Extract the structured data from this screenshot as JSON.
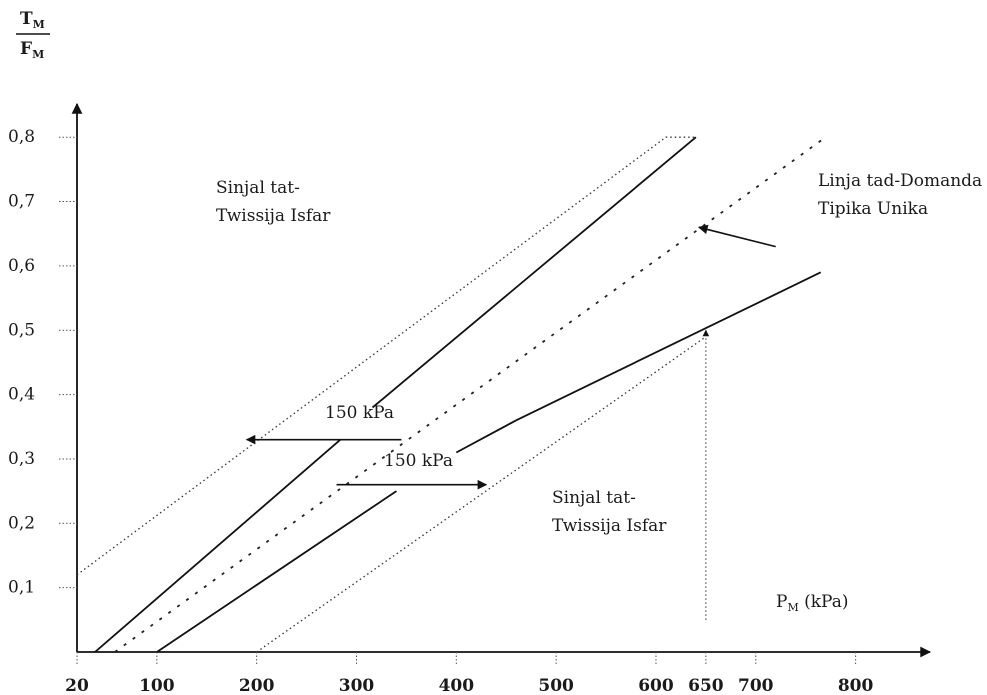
{
  "y_axis": {
    "label_numerator": "T",
    "label_numerator_sub": "M",
    "label_denominator": "F",
    "label_denominator_sub": "M",
    "ticks": [
      {
        "label": "0,1",
        "value": 0.1
      },
      {
        "label": "0,2",
        "value": 0.2
      },
      {
        "label": "0,3",
        "value": 0.3
      },
      {
        "label": "0,4",
        "value": 0.4
      },
      {
        "label": "0,5",
        "value": 0.5
      },
      {
        "label": "0,6",
        "value": 0.6
      },
      {
        "label": "0,7",
        "value": 0.7
      },
      {
        "label": "0,8",
        "value": 0.8
      }
    ]
  },
  "x_axis": {
    "label_main": "P",
    "label_sub": "M",
    "label_unit": " (kPa)",
    "ticks": [
      {
        "label": "20",
        "value": 20
      },
      {
        "label": "100",
        "value": 100
      },
      {
        "label": "200",
        "value": 200
      },
      {
        "label": "300",
        "value": 300
      },
      {
        "label": "400",
        "value": 400
      },
      {
        "label": "500",
        "value": 500
      },
      {
        "label": "600",
        "value": 600
      },
      {
        "label": "650",
        "value": 650
      },
      {
        "label": "700",
        "value": 700
      },
      {
        "label": "800",
        "value": 800
      }
    ]
  },
  "annotations": {
    "upper_region_line1": "Sinjal tat-",
    "upper_region_line2": "Twissija Isfar",
    "lower_region_line1": "Sinjal tat-",
    "lower_region_line2": "Twissija Isfar",
    "typical_line1": "Linja tad-Domanda",
    "typical_line2": "Tipika Unika",
    "offset_upper": "150 kPa",
    "offset_lower": "150 kPa"
  },
  "lines": {
    "upper_dotted_boundary": [
      [
        20,
        0.12
      ],
      [
        610,
        0.8
      ],
      [
        640,
        0.8
      ]
    ],
    "upper_solid_fragment_a": [
      [
        38,
        0.0
      ],
      [
        284,
        0.33
      ]
    ],
    "upper_solid_fragment_b": [
      [
        316,
        0.38
      ],
      [
        640,
        0.8
      ]
    ],
    "typical_demand": [
      [
        58,
        0.0
      ],
      [
        770,
        0.8
      ]
    ],
    "lower_solid_fragment_a": [
      [
        100,
        0.0
      ],
      [
        340,
        0.25
      ]
    ],
    "lower_solid_fragment_b": [
      [
        400,
        0.31
      ],
      [
        460,
        0.36
      ],
      [
        765,
        0.59
      ]
    ],
    "lower_dotted_boundary": [
      [
        200,
        0.0
      ],
      [
        650,
        0.49
      ]
    ]
  },
  "arrows": {
    "upper_offset": {
      "from": [
        345,
        0.33
      ],
      "to": [
        190,
        0.33
      ]
    },
    "lower_offset": {
      "from": [
        280,
        0.26
      ],
      "to": [
        430,
        0.26
      ]
    },
    "typical_pointer": {
      "from": [
        720,
        0.63
      ],
      "to": [
        643,
        0.66
      ]
    },
    "pm_marker": {
      "from_y": 0.05,
      "to_y": 0.5,
      "x": 650
    }
  }
}
